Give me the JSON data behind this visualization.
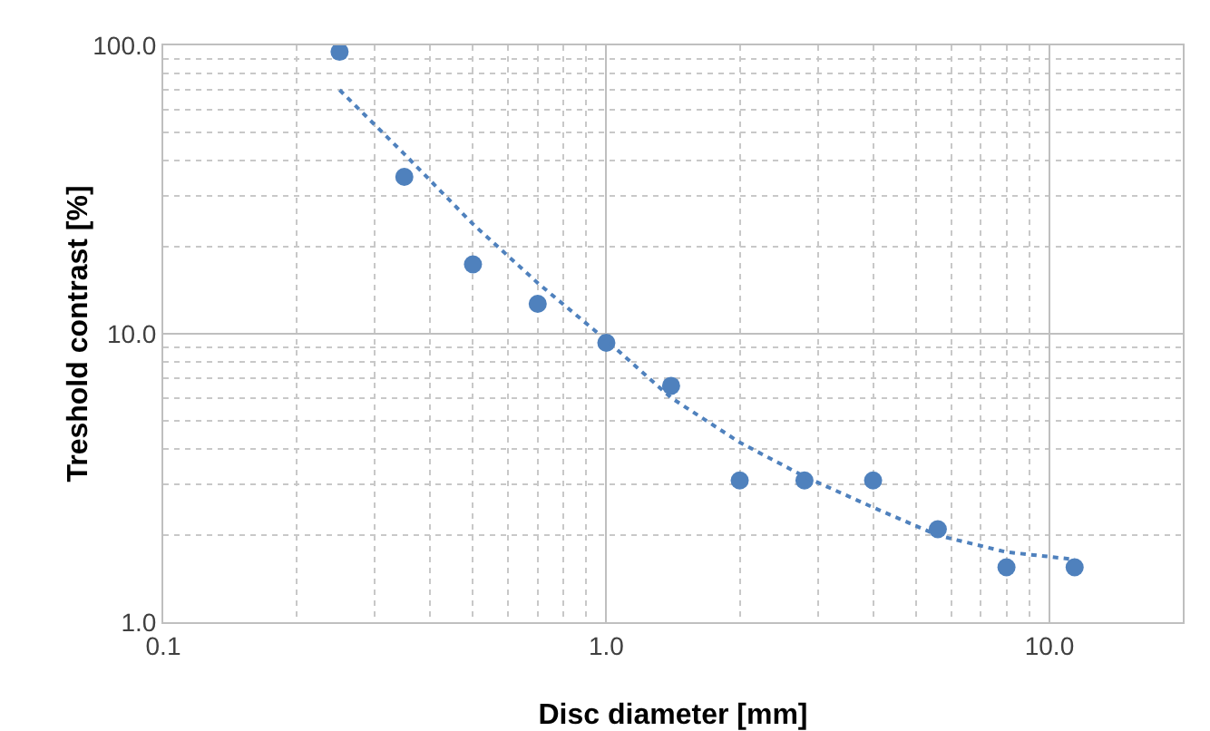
{
  "chart_data": {
    "type": "scatter",
    "xlabel": "Disc diameter [mm]",
    "ylabel": "Treshold contrast [%]",
    "log": "xy",
    "grid": true,
    "marker": "circle",
    "xlim": [
      0.1,
      20
    ],
    "xticks": [
      {
        "value": 0.1,
        "label": "0.1"
      },
      {
        "value": 1,
        "label": "1.0"
      },
      {
        "value": 10,
        "label": "10.0"
      }
    ],
    "ylim": [
      1,
      100
    ],
    "yticks": [
      {
        "value": 1,
        "label": "1.0"
      },
      {
        "value": 10,
        "label": "10.0"
      },
      {
        "value": 100,
        "label": "100.0"
      }
    ],
    "series": [
      {
        "type": "scatter",
        "color": "#4f81bd",
        "x": [
          0.25,
          0.35,
          0.5,
          0.7,
          1.0,
          1.4,
          2.0,
          2.8,
          4.0,
          5.6,
          8.0,
          11.4
        ],
        "values": [
          95,
          35,
          17.4,
          12.7,
          9.3,
          6.6,
          3.1,
          3.1,
          3.1,
          2.1,
          1.55,
          1.55
        ]
      },
      {
        "type": "line",
        "color": "#4f81bd",
        "line_style": "dotted",
        "marker": "none",
        "x": [
          0.25,
          0.35,
          0.5,
          0.7,
          1.0,
          1.4,
          2.0,
          2.8,
          4.0,
          5.6,
          8.0,
          11.4
        ],
        "values": [
          70,
          42,
          24,
          15,
          9.5,
          6,
          4.2,
          3.2,
          2.5,
          2.0,
          1.75,
          1.65
        ]
      }
    ]
  }
}
